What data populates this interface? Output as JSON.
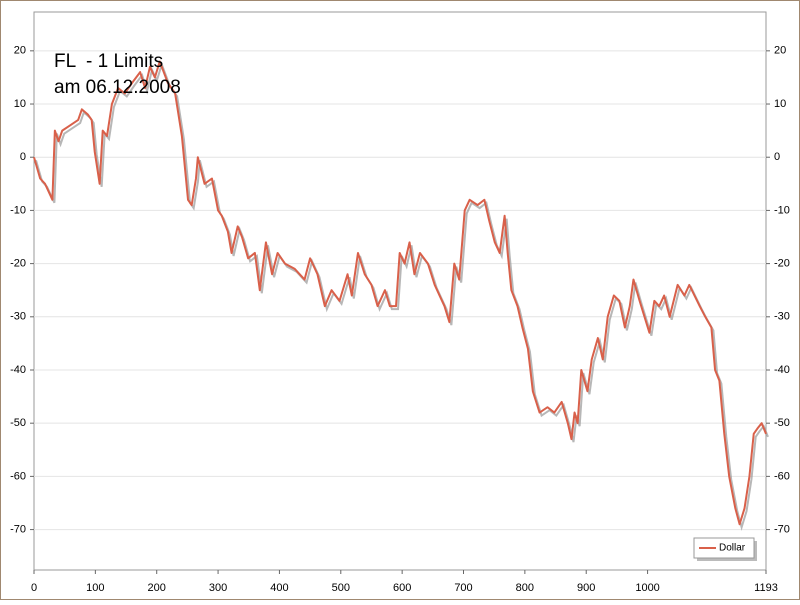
{
  "chart_data": {
    "type": "line",
    "title": "FL  - 1 Limits",
    "subtitle": "am 06.12.2008",
    "x": [
      0,
      10,
      18,
      26,
      30,
      34,
      40,
      46,
      59,
      72,
      78,
      88,
      94,
      99,
      107,
      112,
      119,
      127,
      137,
      148,
      160,
      173,
      181,
      189,
      197,
      205,
      218,
      230,
      241,
      251,
      257,
      264,
      267,
      278,
      290,
      300,
      306,
      316,
      322,
      332,
      339,
      349,
      360,
      368,
      378,
      388,
      397,
      409,
      425,
      441,
      450,
      462,
      474,
      485,
      498,
      511,
      518,
      528,
      539,
      550,
      560,
      572,
      580,
      590,
      596,
      604,
      612,
      620,
      629,
      642,
      653,
      661,
      669,
      677,
      685,
      693,
      702,
      710,
      723,
      734,
      742,
      751,
      759,
      767,
      772,
      778,
      788,
      796,
      805,
      813,
      824,
      837,
      848,
      860,
      870,
      876,
      881,
      886,
      892,
      902,
      909,
      919,
      927,
      935,
      945,
      954,
      963,
      971,
      977,
      987,
      995,
      1003,
      1011,
      1019,
      1027,
      1036,
      1049,
      1060,
      1068,
      1085,
      1094,
      1104,
      1110,
      1117,
      1125,
      1133,
      1143,
      1150,
      1158,
      1166,
      1173,
      1179,
      1186,
      1193
    ],
    "series": [
      {
        "name": "Dollar",
        "color": "#d9604a",
        "values": [
          0,
          -4,
          -5,
          -7,
          -8,
          5,
          3,
          5,
          6,
          7,
          9,
          8,
          7,
          1,
          -5,
          5,
          4,
          10,
          13,
          12,
          14,
          16,
          13,
          17,
          15,
          18,
          14,
          12,
          4,
          -8,
          -9,
          -4,
          0,
          -5,
          -4,
          -10,
          -11,
          -14,
          -18,
          -13,
          -15,
          -19,
          -18,
          -25,
          -16,
          -22,
          -18,
          -20,
          -21,
          -23,
          -19,
          -22,
          -28,
          -25,
          -27,
          -22,
          -26,
          -18,
          -22,
          -24,
          -28,
          -25,
          -28,
          -28,
          -18,
          -20,
          -16,
          -22,
          -18,
          -20,
          -24,
          -26,
          -28,
          -31,
          -20,
          -23,
          -10,
          -8,
          -9,
          -8,
          -12,
          -16,
          -18,
          -11,
          -18,
          -25,
          -28,
          -32,
          -36,
          -44,
          -48,
          -47,
          -48,
          -46,
          -50,
          -53,
          -48,
          -50,
          -40,
          -44,
          -38,
          -34,
          -38,
          -30,
          -26,
          -27,
          -32,
          -28,
          -23,
          -27,
          -30,
          -33,
          -27,
          -28,
          -26,
          -30,
          -24,
          -26,
          -24,
          -28,
          -30,
          -32,
          -40,
          -42,
          -52,
          -60,
          -66,
          -69,
          -66,
          -60,
          -52,
          -51,
          -50,
          -52
        ]
      }
    ],
    "xlim": [
      0,
      1193
    ],
    "xticks": [
      0,
      100,
      200,
      300,
      400,
      500,
      600,
      700,
      800,
      900,
      1000,
      1193
    ],
    "ylim": [
      -77.6,
      27.3
    ],
    "yticks": [
      20,
      10,
      0,
      -10,
      -20,
      -30,
      -40,
      -50,
      -60,
      -70
    ],
    "grid": true,
    "legend": "bottom-right"
  }
}
